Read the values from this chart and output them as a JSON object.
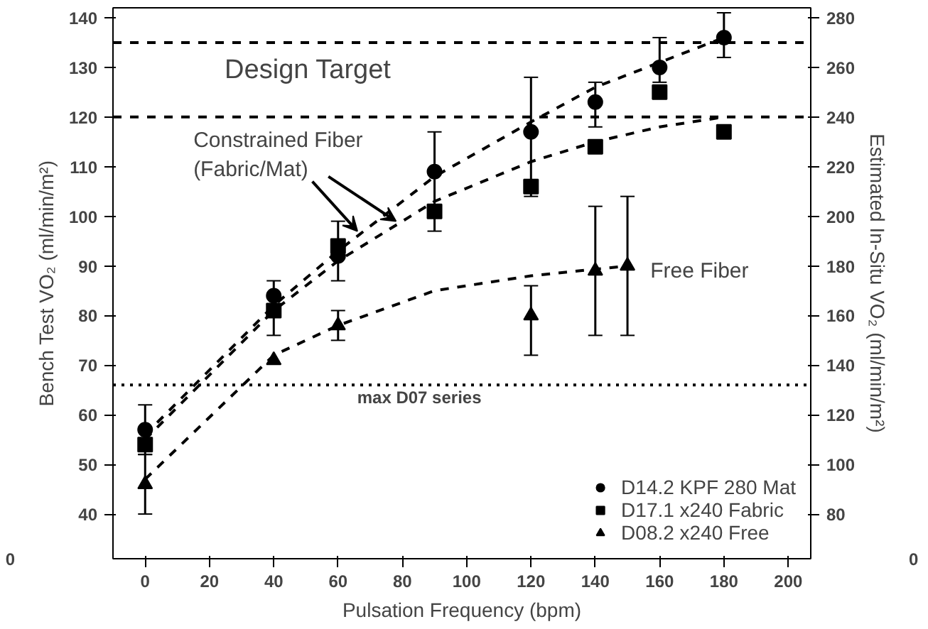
{
  "chart_data": {
    "type": "scatter",
    "xlabel": "Pulsation Frequency (bpm)",
    "ylabel": "Bench Test VO₂ (ml/min/m²)",
    "y2label": "Estimated In-Situ VO₂ (ml/min/m²)",
    "xlim": [
      -10,
      207
    ],
    "xticks": [
      0,
      20,
      40,
      60,
      80,
      100,
      120,
      140,
      160,
      180,
      200
    ],
    "ylim": [
      31,
      142
    ],
    "yticks": [
      40,
      50,
      60,
      70,
      80,
      90,
      100,
      110,
      120,
      130,
      140
    ],
    "y2lim": [
      62,
      284
    ],
    "y2ticks": [
      80,
      100,
      120,
      140,
      160,
      180,
      200,
      220,
      240,
      260,
      280
    ],
    "grid": false,
    "legend": "bottom right",
    "series": [
      {
        "name": "D14.2 KPF 280 Mat",
        "color": "#000000",
        "marker": "circle",
        "x": [
          0,
          40,
          60,
          90,
          120,
          140,
          160,
          180
        ],
        "values": [
          57,
          84,
          92,
          109,
          117,
          123,
          130,
          136
        ],
        "errors": [
          [
            52,
            62
          ],
          [
            76,
            87
          ],
          [
            87,
            99
          ],
          [
            97,
            117
          ],
          [
            104,
            128
          ],
          [
            118,
            127
          ],
          [
            127,
            136
          ],
          [
            132,
            141
          ]
        ]
      },
      {
        "name": "D17.1 x240 Fabric",
        "color": "#000000",
        "marker": "square",
        "x": [
          0,
          40,
          60,
          90,
          120,
          140,
          160,
          180
        ],
        "values": [
          54,
          81,
          94,
          101,
          106,
          114,
          125,
          117
        ]
      },
      {
        "name": "D08.2 x240 Free",
        "color": "#000000",
        "marker": "triangle",
        "x": [
          0,
          40,
          60,
          120,
          140,
          150
        ],
        "values": [
          46,
          71,
          78,
          80,
          89,
          90
        ],
        "errors": [
          [
            40,
            52
          ],
          null,
          [
            75,
            81
          ],
          [
            72,
            86
          ],
          [
            76,
            102
          ],
          [
            76,
            104
          ]
        ]
      },
      {
        "type": "line",
        "color": "#000000",
        "line_style": "dashed",
        "marker": "none",
        "x": [
          0,
          40,
          60,
          90,
          120,
          140,
          160,
          180
        ],
        "values": [
          56,
          82,
          93,
          108,
          119,
          126,
          131,
          136
        ]
      },
      {
        "type": "line",
        "color": "#000000",
        "line_style": "dashed",
        "marker": "none",
        "x": [
          0,
          40,
          60,
          90,
          120,
          140,
          160,
          180
        ],
        "values": [
          55,
          81,
          91,
          103,
          111,
          115,
          118,
          120
        ]
      },
      {
        "type": "line",
        "color": "#000000",
        "line_style": "dashed",
        "marker": "none",
        "x": [
          0,
          40,
          60,
          90,
          120,
          150
        ],
        "values": [
          47,
          72,
          78,
          85,
          88,
          90
        ]
      }
    ],
    "ref_lines": [
      {
        "axis": "y",
        "value": 135,
        "line_style": "dashed",
        "color": "#000000"
      },
      {
        "axis": "y",
        "value": 120,
        "line_style": "dashed",
        "color": "#000000"
      },
      {
        "axis": "y",
        "value": 66,
        "line_style": "dotted",
        "color": "#000000",
        "label": "max D07 series"
      }
    ],
    "annotations": [
      "Design Target",
      {
        "text": "Constrained Fiber\n(Fabric/Mat)",
        "x": 66,
        "y": 97
      },
      "Free Fiber",
      "0",
      "0"
    ]
  }
}
